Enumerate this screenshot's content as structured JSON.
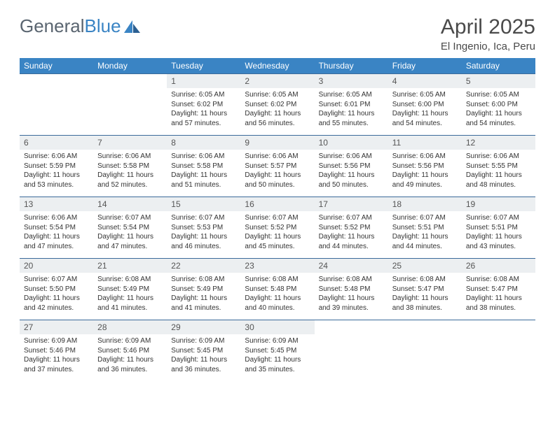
{
  "brand": {
    "part1": "General",
    "part2": "Blue"
  },
  "title": "April 2025",
  "location": "El Ingenio, Ica, Peru",
  "colors": {
    "header_bg": "#3a84c4",
    "header_text": "#ffffff",
    "daynum_bg": "#eceff1",
    "border": "#3a6a9a",
    "text": "#333333",
    "title_text": "#4a4a4a",
    "logo_gray": "#5a6570",
    "logo_blue": "#3a84c4"
  },
  "columns": [
    "Sunday",
    "Monday",
    "Tuesday",
    "Wednesday",
    "Thursday",
    "Friday",
    "Saturday"
  ],
  "weeks": [
    [
      {
        "n": "",
        "sr": "",
        "ss": "",
        "dl": ""
      },
      {
        "n": "",
        "sr": "",
        "ss": "",
        "dl": ""
      },
      {
        "n": "1",
        "sr": "Sunrise: 6:05 AM",
        "ss": "Sunset: 6:02 PM",
        "dl": "Daylight: 11 hours and 57 minutes."
      },
      {
        "n": "2",
        "sr": "Sunrise: 6:05 AM",
        "ss": "Sunset: 6:02 PM",
        "dl": "Daylight: 11 hours and 56 minutes."
      },
      {
        "n": "3",
        "sr": "Sunrise: 6:05 AM",
        "ss": "Sunset: 6:01 PM",
        "dl": "Daylight: 11 hours and 55 minutes."
      },
      {
        "n": "4",
        "sr": "Sunrise: 6:05 AM",
        "ss": "Sunset: 6:00 PM",
        "dl": "Daylight: 11 hours and 54 minutes."
      },
      {
        "n": "5",
        "sr": "Sunrise: 6:05 AM",
        "ss": "Sunset: 6:00 PM",
        "dl": "Daylight: 11 hours and 54 minutes."
      }
    ],
    [
      {
        "n": "6",
        "sr": "Sunrise: 6:06 AM",
        "ss": "Sunset: 5:59 PM",
        "dl": "Daylight: 11 hours and 53 minutes."
      },
      {
        "n": "7",
        "sr": "Sunrise: 6:06 AM",
        "ss": "Sunset: 5:58 PM",
        "dl": "Daylight: 11 hours and 52 minutes."
      },
      {
        "n": "8",
        "sr": "Sunrise: 6:06 AM",
        "ss": "Sunset: 5:58 PM",
        "dl": "Daylight: 11 hours and 51 minutes."
      },
      {
        "n": "9",
        "sr": "Sunrise: 6:06 AM",
        "ss": "Sunset: 5:57 PM",
        "dl": "Daylight: 11 hours and 50 minutes."
      },
      {
        "n": "10",
        "sr": "Sunrise: 6:06 AM",
        "ss": "Sunset: 5:56 PM",
        "dl": "Daylight: 11 hours and 50 minutes."
      },
      {
        "n": "11",
        "sr": "Sunrise: 6:06 AM",
        "ss": "Sunset: 5:56 PM",
        "dl": "Daylight: 11 hours and 49 minutes."
      },
      {
        "n": "12",
        "sr": "Sunrise: 6:06 AM",
        "ss": "Sunset: 5:55 PM",
        "dl": "Daylight: 11 hours and 48 minutes."
      }
    ],
    [
      {
        "n": "13",
        "sr": "Sunrise: 6:06 AM",
        "ss": "Sunset: 5:54 PM",
        "dl": "Daylight: 11 hours and 47 minutes."
      },
      {
        "n": "14",
        "sr": "Sunrise: 6:07 AM",
        "ss": "Sunset: 5:54 PM",
        "dl": "Daylight: 11 hours and 47 minutes."
      },
      {
        "n": "15",
        "sr": "Sunrise: 6:07 AM",
        "ss": "Sunset: 5:53 PM",
        "dl": "Daylight: 11 hours and 46 minutes."
      },
      {
        "n": "16",
        "sr": "Sunrise: 6:07 AM",
        "ss": "Sunset: 5:52 PM",
        "dl": "Daylight: 11 hours and 45 minutes."
      },
      {
        "n": "17",
        "sr": "Sunrise: 6:07 AM",
        "ss": "Sunset: 5:52 PM",
        "dl": "Daylight: 11 hours and 44 minutes."
      },
      {
        "n": "18",
        "sr": "Sunrise: 6:07 AM",
        "ss": "Sunset: 5:51 PM",
        "dl": "Daylight: 11 hours and 44 minutes."
      },
      {
        "n": "19",
        "sr": "Sunrise: 6:07 AM",
        "ss": "Sunset: 5:51 PM",
        "dl": "Daylight: 11 hours and 43 minutes."
      }
    ],
    [
      {
        "n": "20",
        "sr": "Sunrise: 6:07 AM",
        "ss": "Sunset: 5:50 PM",
        "dl": "Daylight: 11 hours and 42 minutes."
      },
      {
        "n": "21",
        "sr": "Sunrise: 6:08 AM",
        "ss": "Sunset: 5:49 PM",
        "dl": "Daylight: 11 hours and 41 minutes."
      },
      {
        "n": "22",
        "sr": "Sunrise: 6:08 AM",
        "ss": "Sunset: 5:49 PM",
        "dl": "Daylight: 11 hours and 41 minutes."
      },
      {
        "n": "23",
        "sr": "Sunrise: 6:08 AM",
        "ss": "Sunset: 5:48 PM",
        "dl": "Daylight: 11 hours and 40 minutes."
      },
      {
        "n": "24",
        "sr": "Sunrise: 6:08 AM",
        "ss": "Sunset: 5:48 PM",
        "dl": "Daylight: 11 hours and 39 minutes."
      },
      {
        "n": "25",
        "sr": "Sunrise: 6:08 AM",
        "ss": "Sunset: 5:47 PM",
        "dl": "Daylight: 11 hours and 38 minutes."
      },
      {
        "n": "26",
        "sr": "Sunrise: 6:08 AM",
        "ss": "Sunset: 5:47 PM",
        "dl": "Daylight: 11 hours and 38 minutes."
      }
    ],
    [
      {
        "n": "27",
        "sr": "Sunrise: 6:09 AM",
        "ss": "Sunset: 5:46 PM",
        "dl": "Daylight: 11 hours and 37 minutes."
      },
      {
        "n": "28",
        "sr": "Sunrise: 6:09 AM",
        "ss": "Sunset: 5:46 PM",
        "dl": "Daylight: 11 hours and 36 minutes."
      },
      {
        "n": "29",
        "sr": "Sunrise: 6:09 AM",
        "ss": "Sunset: 5:45 PM",
        "dl": "Daylight: 11 hours and 36 minutes."
      },
      {
        "n": "30",
        "sr": "Sunrise: 6:09 AM",
        "ss": "Sunset: 5:45 PM",
        "dl": "Daylight: 11 hours and 35 minutes."
      },
      {
        "n": "",
        "sr": "",
        "ss": "",
        "dl": ""
      },
      {
        "n": "",
        "sr": "",
        "ss": "",
        "dl": ""
      },
      {
        "n": "",
        "sr": "",
        "ss": "",
        "dl": ""
      }
    ]
  ]
}
